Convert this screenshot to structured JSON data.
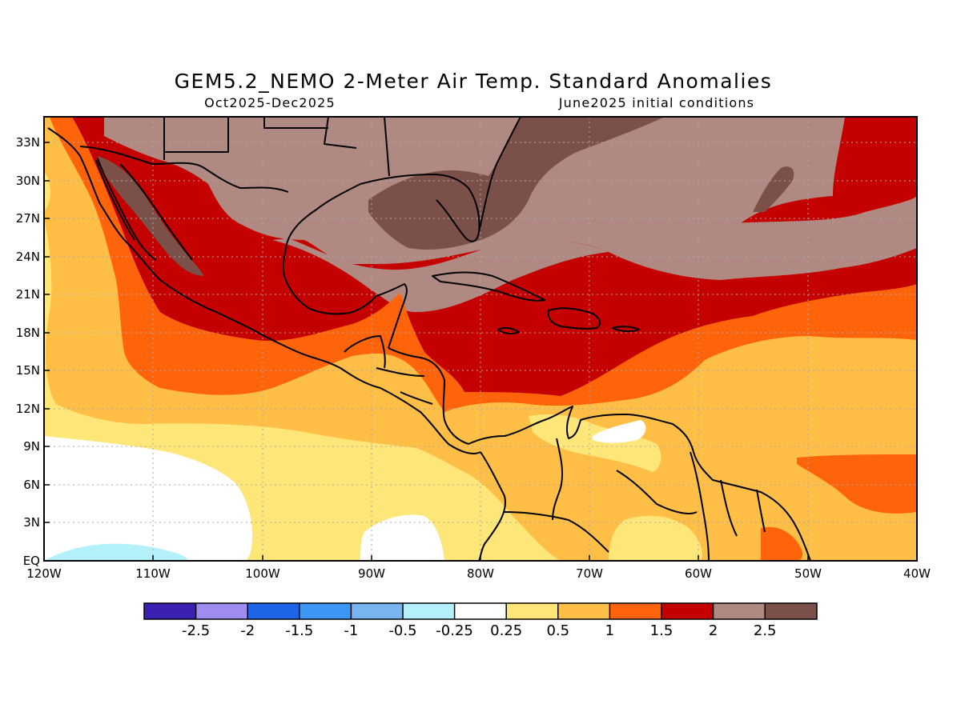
{
  "title": "GEM5.2_NEMO 2-Meter Air Temp. Standard Anomalies",
  "period": "Oct2025-Dec2025",
  "init": "June2025 initial conditions",
  "lat_ticks": [
    "EQ",
    "3N",
    "6N",
    "9N",
    "12N",
    "15N",
    "18N",
    "21N",
    "24N",
    "27N",
    "30N",
    "33N"
  ],
  "lon_ticks": [
    "120W",
    "110W",
    "100W",
    "90W",
    "80W",
    "70W",
    "60W",
    "50W",
    "40W"
  ],
  "colorbar": {
    "labels": [
      "-2.5",
      "-2",
      "-1.5",
      "-1",
      "-0.5",
      "-0.25",
      "0.25",
      "0.5",
      "1",
      "1.5",
      "2",
      "2.5"
    ],
    "colors": [
      "#3c1fb3",
      "#a08cf0",
      "#1e64e6",
      "#3c96f5",
      "#78b4f0",
      "#b4f0fa",
      "#ffffff",
      "#ffe678",
      "#ffbe46",
      "#ff640a",
      "#c40000",
      "#b08a82",
      "#7a5048"
    ]
  },
  "map": {
    "lon_range": [
      -120,
      -40
    ],
    "lat_range": [
      0,
      35
    ],
    "colors": {
      "white": "#ffffff",
      "light_blue": "#b4f0fa",
      "light_yellow": "#ffe678",
      "light_orange": "#ffbe46",
      "orange": "#ff640a",
      "red": "#c40000",
      "brown": "#b08a82",
      "dark_brown": "#7a5048"
    }
  }
}
